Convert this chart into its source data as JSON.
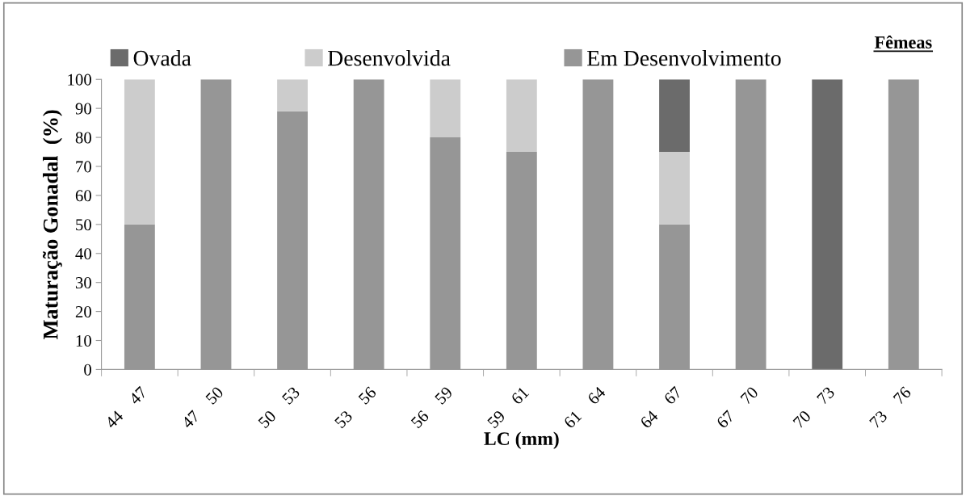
{
  "chart_data": {
    "type": "bar",
    "title": "Fêmeas",
    "xlabel": "LC (mm)",
    "ylabel": "Maturação Gonadal  (%)",
    "categories": [
      "44    47",
      "47    50",
      "50    53",
      "53    56",
      "56    59",
      "59    61",
      "61    64",
      "64    67",
      "67    70",
      "70    73",
      "73    76"
    ],
    "stacked": true,
    "series": [
      {
        "name": "Em Desenvolvimento",
        "color": "#969696",
        "values": [
          50,
          100,
          89,
          100,
          80,
          75,
          100,
          50,
          100,
          0,
          100
        ]
      },
      {
        "name": "Desenvolvida",
        "color": "#cccccc",
        "values": [
          50,
          0,
          11,
          0,
          20,
          25,
          0,
          25,
          0,
          0,
          0
        ]
      },
      {
        "name": "Ovada",
        "color": "#6b6b6b",
        "values": [
          0,
          0,
          0,
          0,
          0,
          0,
          0,
          25,
          0,
          100,
          0
        ]
      }
    ],
    "ylim": [
      0,
      100
    ],
    "yticks": [
      0,
      10,
      20,
      30,
      40,
      50,
      60,
      70,
      80,
      90,
      100
    ],
    "grid": false,
    "legend": "top"
  }
}
